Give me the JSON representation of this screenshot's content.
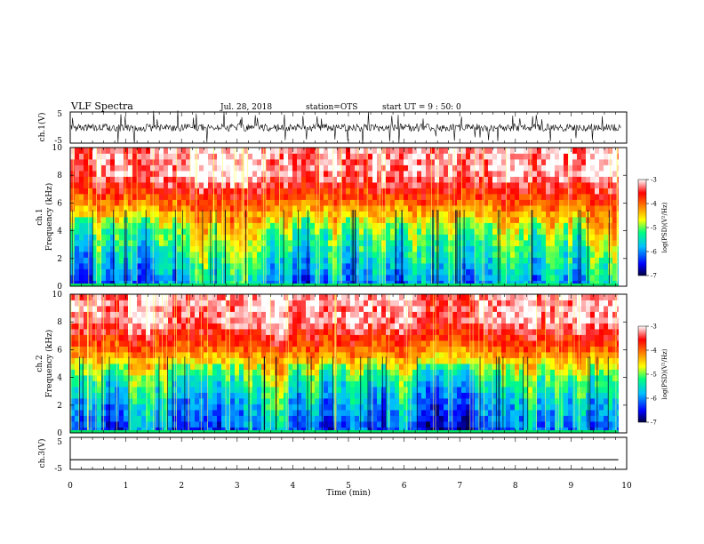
{
  "header": {
    "title": "VLF Spectra",
    "date": "Jul. 28, 2018",
    "station": "station=OTS",
    "start": "start UT =  9 : 50: 0"
  },
  "chart_data": [
    {
      "type": "line",
      "name": "ch1-waveform",
      "ylabel": "ch.1(V)",
      "ylim": [
        -5,
        5
      ],
      "yticks": [
        "5",
        "-5"
      ],
      "xlim": [
        0,
        10
      ],
      "baseline": 0,
      "approx_amplitude": 1.2
    },
    {
      "type": "heatmap",
      "name": "ch1-spectrogram",
      "ylabel": "ch.1\nFrequency (kHz)",
      "ylim": [
        0,
        10
      ],
      "yticks": [
        "0",
        "2",
        "4",
        "6",
        "8",
        "10"
      ],
      "xlim": [
        0,
        9.85
      ],
      "colorbar": {
        "label": "log(PSD)(V²/Hz)",
        "range": [
          -7,
          -3
        ],
        "ticks": [
          "-3",
          "-4",
          "-5",
          "-6",
          "-7"
        ]
      },
      "band_profile_khz_vs_log_psd": [
        [
          0,
          -6.0
        ],
        [
          2,
          -5.5
        ],
        [
          4,
          -5.0
        ],
        [
          6,
          -4.0
        ],
        [
          8,
          -3.2
        ],
        [
          10,
          -3.2
        ]
      ]
    },
    {
      "type": "heatmap",
      "name": "ch2-spectrogram",
      "ylabel": "ch.2\nFrequency (kHz)",
      "ylim": [
        0,
        10
      ],
      "yticks": [
        "0",
        "2",
        "4",
        "6",
        "8",
        "10"
      ],
      "xlim": [
        0,
        9.85
      ],
      "colorbar": {
        "label": "log(PSD)(V²/Hz)",
        "range": [
          -7,
          -3
        ],
        "ticks": [
          "-3",
          "-4",
          "-5",
          "-6",
          "-7"
        ]
      },
      "band_profile_khz_vs_log_psd": [
        [
          0,
          -6.2
        ],
        [
          2,
          -5.8
        ],
        [
          4,
          -5.2
        ],
        [
          6,
          -4.0
        ],
        [
          8,
          -3.2
        ],
        [
          10,
          -3.2
        ]
      ]
    },
    {
      "type": "line",
      "name": "ch3-waveform",
      "ylabel": "ch.3(V)",
      "ylim": [
        -5,
        5
      ],
      "yticks": [
        "5",
        "-5"
      ],
      "xlim": [
        0,
        9.85
      ],
      "baseline": -2,
      "xlabel": "Time (min)",
      "xticks": [
        "0",
        "1",
        "2",
        "3",
        "4",
        "5",
        "6",
        "7",
        "8",
        "9",
        "10"
      ]
    }
  ],
  "colors": {
    "colormap": [
      "#000080",
      "#0000ff",
      "#00bfff",
      "#00ff7f",
      "#7fff00",
      "#ffff00",
      "#ff8000",
      "#ff0000",
      "#ffffff"
    ],
    "axes": "#000000"
  }
}
